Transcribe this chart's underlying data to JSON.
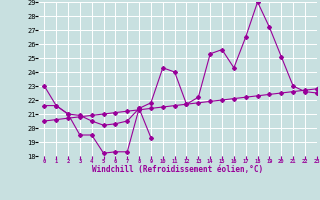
{
  "bg_color": "#c8e0e0",
  "grid_color": "#ffffff",
  "line_color": "#990099",
  "xlabel": "Windchill (Refroidissement éolien,°C)",
  "xmin": -0.5,
  "xmax": 23,
  "ymin": 18,
  "ymax": 29,
  "yticks": [
    18,
    19,
    20,
    21,
    22,
    23,
    24,
    25,
    26,
    27,
    28,
    29
  ],
  "xticks": [
    0,
    1,
    2,
    3,
    4,
    5,
    6,
    7,
    8,
    9,
    10,
    11,
    12,
    13,
    14,
    15,
    16,
    17,
    18,
    19,
    20,
    21,
    22,
    23
  ],
  "line1_x": [
    0,
    1,
    2,
    3,
    4,
    5,
    6,
    7,
    8,
    9
  ],
  "line1_y": [
    23.0,
    21.6,
    21.0,
    19.5,
    19.5,
    18.2,
    18.3,
    18.3,
    21.4,
    19.3
  ],
  "line2_x": [
    0,
    1,
    2,
    3,
    4,
    5,
    6,
    7,
    8,
    9,
    10,
    11,
    12,
    13,
    14,
    15,
    16,
    17,
    18,
    19,
    20,
    21,
    22,
    23
  ],
  "line2_y": [
    21.6,
    21.6,
    21.0,
    20.9,
    20.5,
    20.2,
    20.3,
    20.5,
    21.4,
    21.8,
    24.3,
    24.0,
    21.7,
    22.2,
    25.3,
    25.6,
    24.3,
    26.5,
    29.0,
    27.2,
    25.1,
    23.0,
    22.6,
    22.5
  ],
  "line3_x": [
    0,
    1,
    2,
    3,
    4,
    5,
    6,
    7,
    8,
    9,
    10,
    11,
    12,
    13,
    14,
    15,
    16,
    17,
    18,
    19,
    20,
    21,
    22,
    23
  ],
  "line3_y": [
    20.5,
    20.6,
    20.7,
    20.8,
    20.9,
    21.0,
    21.1,
    21.2,
    21.3,
    21.4,
    21.5,
    21.6,
    21.7,
    21.8,
    21.9,
    22.0,
    22.1,
    22.2,
    22.3,
    22.4,
    22.5,
    22.6,
    22.7,
    22.8
  ]
}
